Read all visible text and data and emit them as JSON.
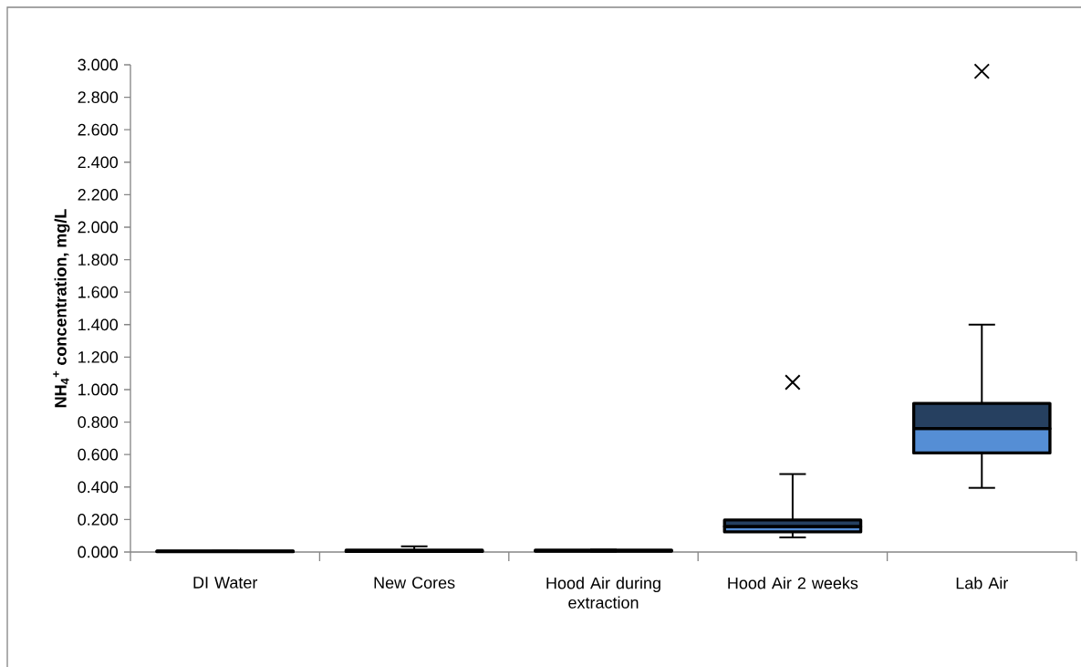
{
  "chart_data": {
    "type": "box",
    "ylabel": "NH$_{4}$$^{+}$ concentration, mg/L",
    "categories": [
      "DI Water",
      "New Cores",
      "Hood Air during extraction",
      "Hood Air 2 weeks",
      "Lab Air"
    ],
    "colors": [
      "#558ed5",
      "#558ed5",
      "#558ed5",
      "#558ed5",
      "#558ed5"
    ],
    "boxes": [
      {
        "low": 0.001,
        "q1": 0.002,
        "median": 0.004,
        "q3": 0.006,
        "high": 0.007
      },
      {
        "low": 0.0,
        "q1": 0.003,
        "median": 0.006,
        "q3": 0.012,
        "high": 0.035
      },
      {
        "low": 0.003,
        "q1": 0.005,
        "median": 0.008,
        "q3": 0.012,
        "high": 0.015
      },
      {
        "low": 0.09,
        "q1": 0.124,
        "median": 0.157,
        "q3": 0.197,
        "high": 0.48,
        "outliers": [
          1.045
        ]
      },
      {
        "low": 0.395,
        "q1": 0.61,
        "median": 0.76,
        "q3": 0.915,
        "high": 1.4,
        "outliers": [
          2.96
        ]
      }
    ],
    "ylim": [
      0,
      3.0
    ],
    "yticks": [
      {
        "value": 0,
        "label": "0.000"
      },
      {
        "value": 0.2,
        "label": "0.200"
      },
      {
        "value": 0.4,
        "label": "0.400"
      },
      {
        "value": 0.6,
        "label": "0.600"
      },
      {
        "value": 0.8,
        "label": "0.800"
      },
      {
        "value": 1.0,
        "label": "1.000"
      },
      {
        "value": 1.2,
        "label": "1.200"
      },
      {
        "value": 1.4,
        "label": "1.400"
      },
      {
        "value": 1.6,
        "label": "1.600"
      },
      {
        "value": 1.8,
        "label": "1.800"
      },
      {
        "value": 2.0,
        "label": "2.000"
      },
      {
        "value": 2.2,
        "label": "2.200"
      },
      {
        "value": 2.4,
        "label": "2.400"
      },
      {
        "value": 2.6,
        "label": "2.600"
      },
      {
        "value": 2.8,
        "label": "2.800"
      },
      {
        "value": 3.0,
        "label": "3.000"
      }
    ],
    "grid": false
  }
}
